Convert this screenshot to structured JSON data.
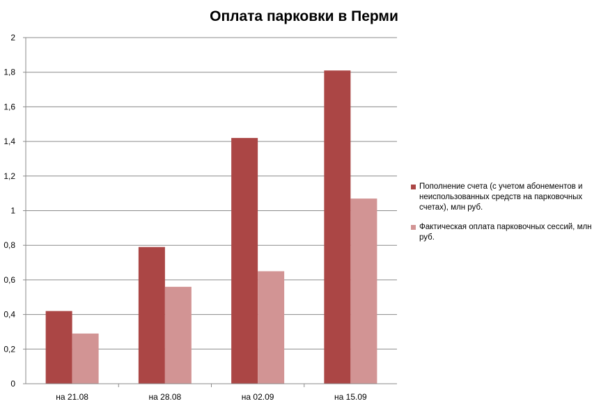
{
  "chart_data": {
    "type": "bar",
    "title": "Оплата парковки в Перми",
    "categories": [
      "на 21.08",
      "на 28.08",
      "на 02.09",
      "на 15.09"
    ],
    "series": [
      {
        "name": "Пополнение счета (с учетом абонементов и неиспользованных средств на парковочных счетах), млн руб.",
        "color": "#AB4645",
        "values": [
          0.42,
          0.79,
          1.42,
          1.81
        ]
      },
      {
        "name": "Фактическая оплата парковочных сессий, млн руб.",
        "color": "#D29494",
        "values": [
          0.29,
          0.56,
          0.65,
          1.07
        ]
      }
    ],
    "yticks": [
      "0",
      "0,2",
      "0,4",
      "0,6",
      "0,8",
      "1",
      "1,2",
      "1,4",
      "1,6",
      "1,8",
      "2"
    ],
    "ylim": [
      0,
      2
    ],
    "grid": true,
    "legend_position": "right"
  }
}
